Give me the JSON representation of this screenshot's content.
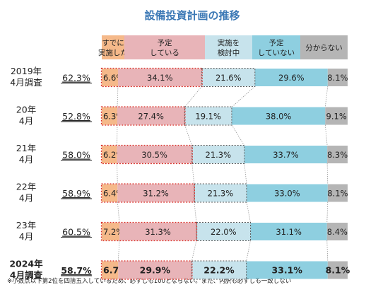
{
  "chart_data": {
    "type": "bar",
    "stacked": true,
    "orientation": "horizontal",
    "title": "設備投資計画の推移",
    "categories": [
      "2019年4月調査",
      "20年4月",
      "21年4月",
      "22年4月",
      "23年4月",
      "2024年4月調査"
    ],
    "category_lines": [
      [
        "2019年",
        "4月調査"
      ],
      [
        "20年",
        "4月"
      ],
      [
        "21年",
        "4月"
      ],
      [
        "22年",
        "4月"
      ],
      [
        "23年",
        "4月"
      ],
      [
        "2024年",
        "4月調査"
      ]
    ],
    "plan_totals": [
      "62.3%",
      "52.8%",
      "58.0%",
      "58.9%",
      "60.5%",
      "58.7%"
    ],
    "series": [
      {
        "name": "すでに実施した",
        "name_lines": [
          "すでに",
          "実施した"
        ],
        "color": "#f5b98a",
        "values": [
          6.6,
          6.3,
          6.2,
          6.4,
          7.2,
          6.7
        ]
      },
      {
        "name": "予定している",
        "name_lines": [
          "予定",
          "している"
        ],
        "color": "#e8b4b8",
        "values": [
          34.1,
          27.4,
          30.5,
          31.2,
          31.3,
          29.9
        ]
      },
      {
        "name": "実施を検討中",
        "name_lines": [
          "実施を",
          "検討中"
        ],
        "color": "#c7e3ec",
        "values": [
          21.6,
          19.1,
          21.3,
          21.3,
          22.0,
          22.2
        ]
      },
      {
        "name": "予定していない",
        "name_lines": [
          "予定",
          "していない"
        ],
        "color": "#8ecfe0",
        "values": [
          29.6,
          38.0,
          33.7,
          33.0,
          31.1,
          33.1
        ]
      },
      {
        "name": "分からない",
        "name_lines": [
          "分からない"
        ],
        "color": "#b5b5b5",
        "values": [
          8.1,
          9.1,
          8.3,
          8.1,
          8.4,
          8.1
        ]
      }
    ],
    "highlight_last_row": true,
    "footnote": "※小数点以下第2位を四捨五入しているため、必ずしも100とならない。また、内訳も必ずしも一致しない"
  }
}
